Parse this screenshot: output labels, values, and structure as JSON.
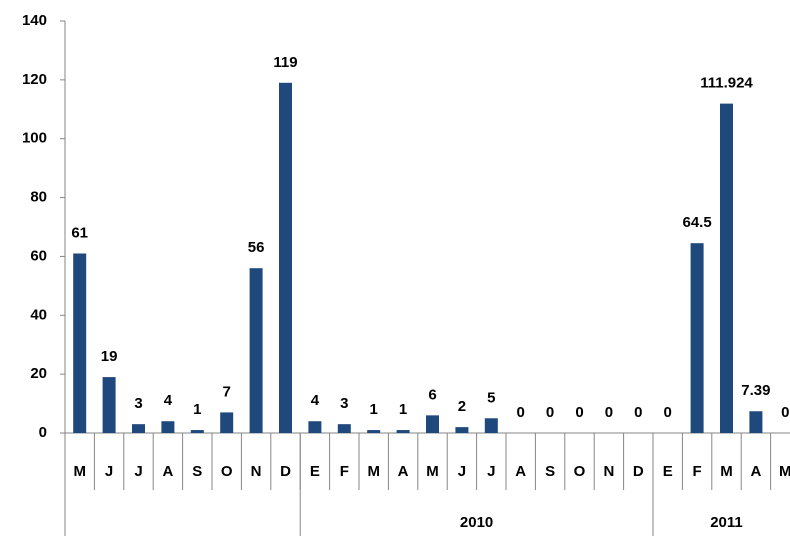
{
  "chart_data": {
    "type": "bar",
    "categories": [
      "M",
      "J",
      "J",
      "A",
      "S",
      "O",
      "N",
      "D",
      "E",
      "F",
      "M",
      "A",
      "M",
      "J",
      "J",
      "A",
      "S",
      "O",
      "N",
      "D",
      "E",
      "F",
      "M",
      "A",
      "M"
    ],
    "values": [
      61,
      19,
      3,
      4,
      1,
      7,
      56,
      119,
      4,
      3,
      1,
      1,
      6,
      2,
      5,
      0,
      0,
      0,
      0,
      0,
      0,
      64.5,
      111.924,
      7.39,
      0
    ],
    "color": "#1f497d",
    "ylim": [
      0,
      140
    ],
    "yticks": [
      0,
      20,
      40,
      60,
      80,
      100,
      120,
      140
    ],
    "grid": false,
    "x_groups": [
      {
        "label": null,
        "span": 8
      },
      {
        "label": "2010",
        "span": 12
      },
      {
        "label": "2011",
        "span": 5
      }
    ]
  }
}
